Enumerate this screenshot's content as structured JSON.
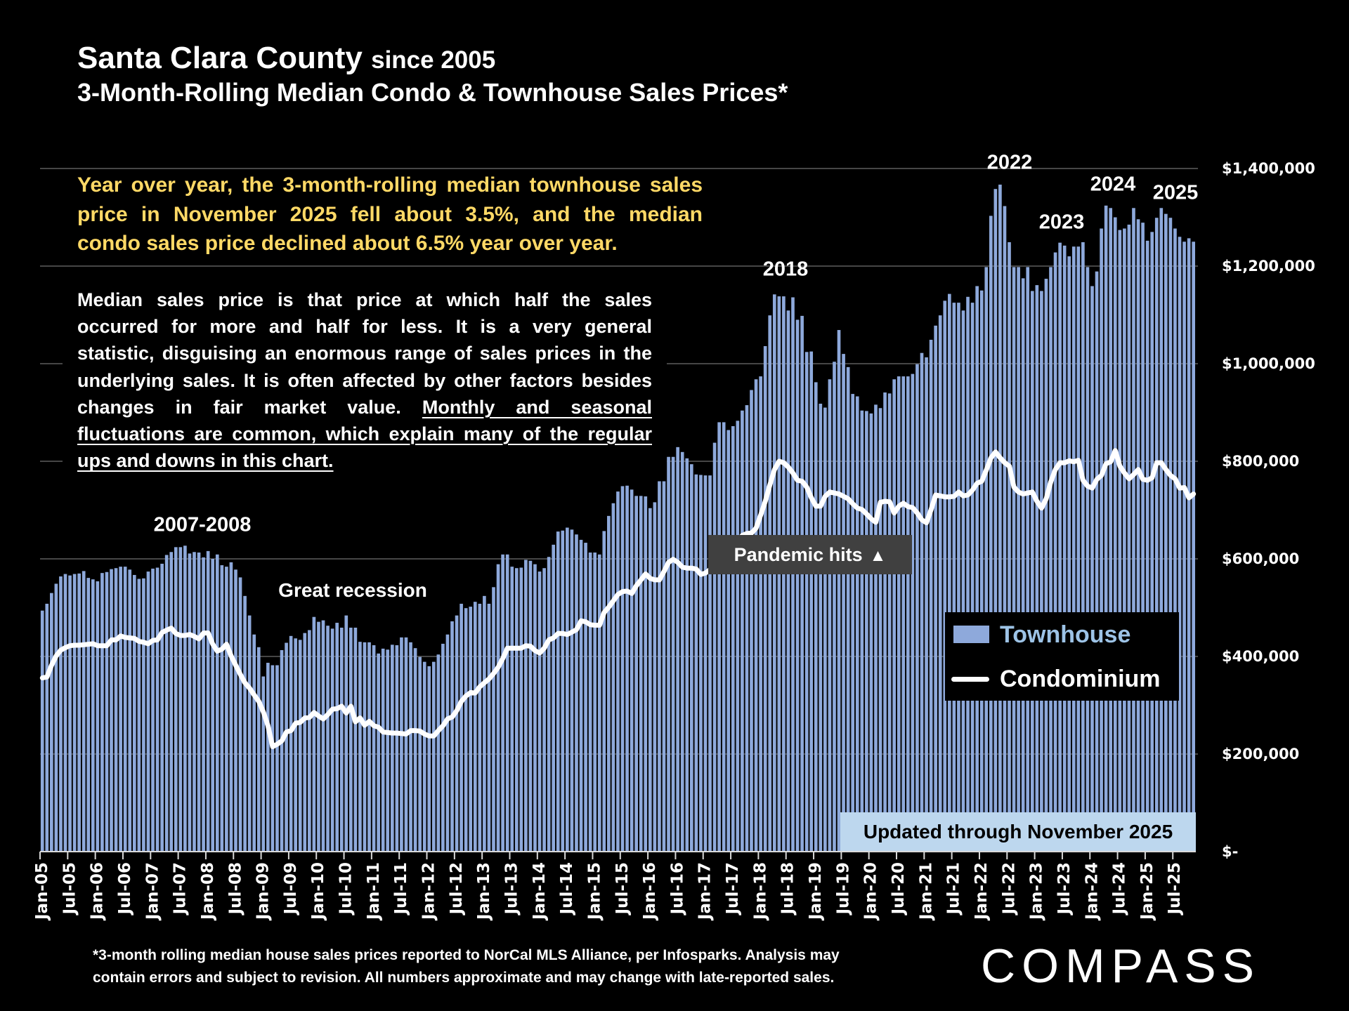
{
  "header": {
    "title": "Santa Clara County",
    "title_suffix": "since 2005",
    "subtitle": "3-Month-Rolling Median Condo & Townhouse Sales Prices*"
  },
  "highlight": {
    "lines": [
      "Year over year, the 3-month-rolling median townhouse sales",
      "price in November 2025 fell about 3.5%, and the median",
      "condo sales price declined about 6.5% year over year."
    ]
  },
  "explanation": {
    "lines": [
      [
        {
          "text": "Median sales price is that price at which half the sales",
          "underline": false
        }
      ],
      [
        {
          "text": "occurred for more and half for less. It is a very general",
          "underline": false
        }
      ],
      [
        {
          "text": "statistic, disguising an enormous range of sales prices in the",
          "underline": false
        }
      ],
      [
        {
          "text": "underlying sales. It is often affected by other factors besides",
          "underline": false
        }
      ],
      [
        {
          "text": "changes in fair market value. ",
          "underline": false
        },
        {
          "text": "Monthly and seasonal",
          "underline": true
        }
      ],
      [
        {
          "text": "fluctuations are common, which explain many of the regular",
          "underline": true
        }
      ],
      [
        {
          "text": "ups and downs in this chart.",
          "underline": true
        }
      ]
    ]
  },
  "annotations": {
    "period_2007_2008": "2007-2008",
    "great_recession": "Great recession",
    "year_2018": "2018",
    "year_2022": "2022",
    "year_2023": "2023",
    "year_2024": "2024",
    "year_2025": "2025",
    "pandemic": "Pandemic hits",
    "pandemic_icon": "up-triangle"
  },
  "update_note": "Updated through November 2025",
  "footnote": {
    "line1": "*3-month rolling median house sales prices reported to NorCal MLS Alliance, per Infosparks. Analysis may",
    "line2": "contain errors and subject to revision. All numbers approximate and may change with late-reported sales."
  },
  "brand": {
    "logo": "COMPASS"
  },
  "chart_data": {
    "type": "bar",
    "title": "3-Month-Rolling Median Condo & Townhouse Sales Prices*",
    "subtitle": "Santa Clara County since 2005",
    "xlabel": "",
    "ylabel": "",
    "ylim": [
      0,
      1400000
    ],
    "y_ticks": [
      0,
      200000,
      400000,
      600000,
      800000,
      1000000,
      1200000,
      1400000
    ],
    "y_tick_labels": [
      "$-",
      "$200,000",
      "$400,000",
      "$600,000",
      "$800,000",
      "$1,000,000",
      "$1,200,000",
      "$1,400,000"
    ],
    "y_axis_side": "right",
    "grid": true,
    "legend_position": "right",
    "x_tick_labels": [
      "Jan-05",
      "Jul-05",
      "Jan-06",
      "Jul-06",
      "Jan-07",
      "Jul-07",
      "Jan-08",
      "Jul-08",
      "Jan-09",
      "Jul-09",
      "Jan-10",
      "Jul-10",
      "Jan-11",
      "Jul-11",
      "Jan-12",
      "Jul-12",
      "Jan-13",
      "Jul-13",
      "Jan-14",
      "Jul-14",
      "Jan-15",
      "Jul-15",
      "Jan-16",
      "Jul-16",
      "Jan-17",
      "Jul-17",
      "Jan-18",
      "Jul-18",
      "Jan-19",
      "Jul-19",
      "Jan-20",
      "Jul-20",
      "Jan-21",
      "Jul-21",
      "Jan-22",
      "Jul-22",
      "Jan-23",
      "Jul-23",
      "Jan-24",
      "Jul-24",
      "Jan-25",
      "Jul-25"
    ],
    "categories": [
      "Jan-05",
      "Feb-05",
      "Mar-05",
      "Apr-05",
      "May-05",
      "Jun-05",
      "Jul-05",
      "Aug-05",
      "Sep-05",
      "Oct-05",
      "Nov-05",
      "Dec-05",
      "Jan-06",
      "Feb-06",
      "Mar-06",
      "Apr-06",
      "May-06",
      "Jun-06",
      "Jul-06",
      "Aug-06",
      "Sep-06",
      "Oct-06",
      "Nov-06",
      "Dec-06",
      "Jan-07",
      "Feb-07",
      "Mar-07",
      "Apr-07",
      "May-07",
      "Jun-07",
      "Jul-07",
      "Aug-07",
      "Sep-07",
      "Oct-07",
      "Nov-07",
      "Dec-07",
      "Jan-08",
      "Feb-08",
      "Mar-08",
      "Apr-08",
      "May-08",
      "Jun-08",
      "Jul-08",
      "Aug-08",
      "Sep-08",
      "Oct-08",
      "Nov-08",
      "Dec-08",
      "Jan-09",
      "Feb-09",
      "Mar-09",
      "Apr-09",
      "May-09",
      "Jun-09",
      "Jul-09",
      "Aug-09",
      "Sep-09",
      "Oct-09",
      "Nov-09",
      "Dec-09",
      "Jan-10",
      "Feb-10",
      "Mar-10",
      "Apr-10",
      "May-10",
      "Jun-10",
      "Jul-10",
      "Aug-10",
      "Sep-10",
      "Oct-10",
      "Nov-10",
      "Dec-10",
      "Jan-11",
      "Feb-11",
      "Mar-11",
      "Apr-11",
      "May-11",
      "Jun-11",
      "Jul-11",
      "Aug-11",
      "Sep-11",
      "Oct-11",
      "Nov-11",
      "Dec-11",
      "Jan-12",
      "Feb-12",
      "Mar-12",
      "Apr-12",
      "May-12",
      "Jun-12",
      "Jul-12",
      "Aug-12",
      "Sep-12",
      "Oct-12",
      "Nov-12",
      "Dec-12",
      "Jan-13",
      "Feb-13",
      "Mar-13",
      "Apr-13",
      "May-13",
      "Jun-13",
      "Jul-13",
      "Aug-13",
      "Sep-13",
      "Oct-13",
      "Nov-13",
      "Dec-13",
      "Jan-14",
      "Feb-14",
      "Mar-14",
      "Apr-14",
      "May-14",
      "Jun-14",
      "Jul-14",
      "Aug-14",
      "Sep-14",
      "Oct-14",
      "Nov-14",
      "Dec-14",
      "Jan-15",
      "Feb-15",
      "Mar-15",
      "Apr-15",
      "May-15",
      "Jun-15",
      "Jul-15",
      "Aug-15",
      "Sep-15",
      "Oct-15",
      "Nov-15",
      "Dec-15",
      "Jan-16",
      "Feb-16",
      "Mar-16",
      "Apr-16",
      "May-16",
      "Jun-16",
      "Jul-16",
      "Aug-16",
      "Sep-16",
      "Oct-16",
      "Nov-16",
      "Dec-16",
      "Jan-17",
      "Feb-17",
      "Mar-17",
      "Apr-17",
      "May-17",
      "Jun-17",
      "Jul-17",
      "Aug-17",
      "Sep-17",
      "Oct-17",
      "Nov-17",
      "Dec-17",
      "Jan-18",
      "Feb-18",
      "Mar-18",
      "Apr-18",
      "May-18",
      "Jun-18",
      "Jul-18",
      "Aug-18",
      "Sep-18",
      "Oct-18",
      "Nov-18",
      "Dec-18",
      "Jan-19",
      "Feb-19",
      "Mar-19",
      "Apr-19",
      "May-19",
      "Jun-19",
      "Jul-19",
      "Aug-19",
      "Sep-19",
      "Oct-19",
      "Nov-19",
      "Dec-19",
      "Jan-20",
      "Feb-20",
      "Mar-20",
      "Apr-20",
      "May-20",
      "Jun-20",
      "Jul-20",
      "Aug-20",
      "Sep-20",
      "Oct-20",
      "Nov-20",
      "Dec-20",
      "Jan-21",
      "Feb-21",
      "Mar-21",
      "Apr-21",
      "May-21",
      "Jun-21",
      "Jul-21",
      "Aug-21",
      "Sep-21",
      "Oct-21",
      "Nov-21",
      "Dec-21",
      "Jan-22",
      "Feb-22",
      "Mar-22",
      "Apr-22",
      "May-22",
      "Jun-22",
      "Jul-22",
      "Aug-22",
      "Sep-22",
      "Oct-22",
      "Nov-22",
      "Dec-22",
      "Jan-23",
      "Feb-23",
      "Mar-23",
      "Apr-23",
      "May-23",
      "Jun-23",
      "Jul-23",
      "Aug-23",
      "Sep-23",
      "Oct-23",
      "Nov-23",
      "Dec-23",
      "Jan-24",
      "Feb-24",
      "Mar-24",
      "Apr-24",
      "May-24",
      "Jun-24",
      "Jul-24",
      "Aug-24",
      "Sep-24",
      "Oct-24",
      "Nov-24",
      "Dec-24",
      "Jan-25",
      "Feb-25",
      "Mar-25",
      "Apr-25",
      "May-25",
      "Jun-25",
      "Jul-25",
      "Aug-25",
      "Sep-25",
      "Oct-25",
      "Nov-25"
    ],
    "series": [
      {
        "name": "Townhouse",
        "type": "bar",
        "color": "#8EA9DB",
        "values": [
          494000,
          508000,
          530000,
          549000,
          564000,
          569000,
          566000,
          569000,
          570000,
          575000,
          561000,
          558000,
          554000,
          571000,
          573000,
          579000,
          581000,
          584000,
          584000,
          578000,
          567000,
          559000,
          560000,
          574000,
          580000,
          582000,
          590000,
          608000,
          614000,
          624000,
          624000,
          627000,
          611000,
          614000,
          613000,
          603000,
          616000,
          600000,
          609000,
          587000,
          584000,
          593000,
          578000,
          562000,
          524000,
          484000,
          445000,
          419000,
          359000,
          387000,
          382000,
          382000,
          413000,
          428000,
          442000,
          437000,
          434000,
          448000,
          454000,
          481000,
          471000,
          474000,
          463000,
          457000,
          469000,
          459000,
          484000,
          459000,
          459000,
          430000,
          429000,
          429000,
          423000,
          406000,
          416000,
          414000,
          424000,
          423000,
          439000,
          439000,
          429000,
          417000,
          399000,
          389000,
          380000,
          389000,
          404000,
          426000,
          445000,
          472000,
          484000,
          508000,
          499000,
          502000,
          512000,
          508000,
          524000,
          508000,
          542000,
          589000,
          609000,
          609000,
          584000,
          581000,
          582000,
          598000,
          596000,
          589000,
          574000,
          581000,
          604000,
          629000,
          656000,
          658000,
          664000,
          660000,
          650000,
          639000,
          633000,
          613000,
          613000,
          609000,
          657000,
          688000,
          714000,
          738000,
          749000,
          750000,
          742000,
          729000,
          729000,
          728000,
          704000,
          716000,
          759000,
          759000,
          809000,
          809000,
          829000,
          819000,
          806000,
          794000,
          773000,
          772000,
          771000,
          771000,
          838000,
          880000,
          880000,
          864000,
          872000,
          883000,
          904000,
          915000,
          946000,
          968000,
          974000,
          1036000,
          1099000,
          1142000,
          1138000,
          1138000,
          1109000,
          1136000,
          1090000,
          1098000,
          1024000,
          1025000,
          962000,
          918000,
          910000,
          968000,
          1004000,
          1069000,
          1020000,
          993000,
          938000,
          933000,
          904000,
          903000,
          898000,
          916000,
          909000,
          941000,
          939000,
          968000,
          974000,
          974000,
          974000,
          979000,
          999000,
          1022000,
          1013000,
          1049000,
          1078000,
          1099000,
          1129000,
          1143000,
          1125000,
          1125000,
          1109000,
          1137000,
          1125000,
          1159000,
          1150000,
          1198000,
          1303000,
          1358000,
          1367000,
          1323000,
          1249000,
          1198000,
          1198000,
          1175000,
          1198000,
          1149000,
          1161000,
          1149000,
          1174000,
          1198000,
          1228000,
          1248000,
          1242000,
          1220000,
          1240000,
          1240000,
          1249000,
          1198000,
          1159000,
          1189000,
          1277000,
          1324000,
          1319000,
          1300000,
          1274000,
          1277000,
          1285000,
          1319000,
          1296000,
          1289000,
          1252000,
          1270000,
          1299000,
          1319000,
          1307000,
          1299000,
          1277000,
          1260000,
          1250000,
          1257000,
          1250000
        ]
      },
      {
        "name": "Condominium",
        "type": "line",
        "color": "#FFFFFF",
        "values": [
          356000,
          358000,
          382000,
          401000,
          413000,
          418000,
          422000,
          423000,
          423000,
          424000,
          425000,
          426000,
          422000,
          422000,
          422000,
          434000,
          434000,
          442000,
          439000,
          438000,
          437000,
          431000,
          429000,
          426000,
          433000,
          434000,
          449000,
          454000,
          458000,
          447000,
          443000,
          443000,
          445000,
          441000,
          436000,
          448000,
          448000,
          425000,
          411000,
          415000,
          425000,
          401000,
          382000,
          363000,
          346000,
          335000,
          321000,
          308000,
          286000,
          258000,
          215000,
          220000,
          227000,
          245000,
          248000,
          263000,
          265000,
          274000,
          275000,
          285000,
          278000,
          272000,
          281000,
          292000,
          293000,
          298000,
          284000,
          298000,
          266000,
          274000,
          259000,
          267000,
          258000,
          255000,
          245000,
          244000,
          243000,
          243000,
          242000,
          241000,
          248000,
          248000,
          247000,
          241000,
          237000,
          237000,
          248000,
          258000,
          272000,
          276000,
          289000,
          308000,
          319000,
          326000,
          325000,
          338000,
          346000,
          354000,
          365000,
          378000,
          396000,
          417000,
          417000,
          417000,
          417000,
          422000,
          421000,
          412000,
          407000,
          417000,
          434000,
          438000,
          447000,
          447000,
          445000,
          450000,
          455000,
          473000,
          471000,
          465000,
          464000,
          464000,
          490000,
          501000,
          514000,
          527000,
          533000,
          534000,
          529000,
          545000,
          557000,
          569000,
          560000,
          557000,
          557000,
          574000,
          593000,
          599000,
          593000,
          583000,
          581000,
          581000,
          579000,
          568000,
          571000,
          578000,
          585000,
          592000,
          600000,
          610000,
          622000,
          635000,
          648000,
          652000,
          653000,
          663000,
          690000,
          718000,
          752000,
          783000,
          800000,
          797000,
          788000,
          776000,
          761000,
          759000,
          747000,
          725000,
          708000,
          708000,
          728000,
          737000,
          735000,
          733000,
          728000,
          723000,
          713000,
          704000,
          701000,
          692000,
          682000,
          675000,
          716000,
          718000,
          717000,
          694000,
          708000,
          714000,
          707000,
          705000,
          694000,
          680000,
          674000,
          701000,
          731000,
          729000,
          727000,
          727000,
          728000,
          737000,
          729000,
          731000,
          741000,
          755000,
          759000,
          782000,
          807000,
          819000,
          807000,
          797000,
          790000,
          747000,
          737000,
          733000,
          735000,
          737000,
          718000,
          704000,
          723000,
          758000,
          783000,
          797000,
          797000,
          801000,
          799000,
          802000,
          761000,
          749000,
          745000,
          763000,
          771000,
          795000,
          799000,
          822000,
          790000,
          776000,
          764000,
          773000,
          783000,
          763000,
          761000,
          766000,
          797000,
          797000,
          783000,
          771000,
          764000,
          745000,
          746000,
          725000,
          733000
        ]
      }
    ]
  }
}
